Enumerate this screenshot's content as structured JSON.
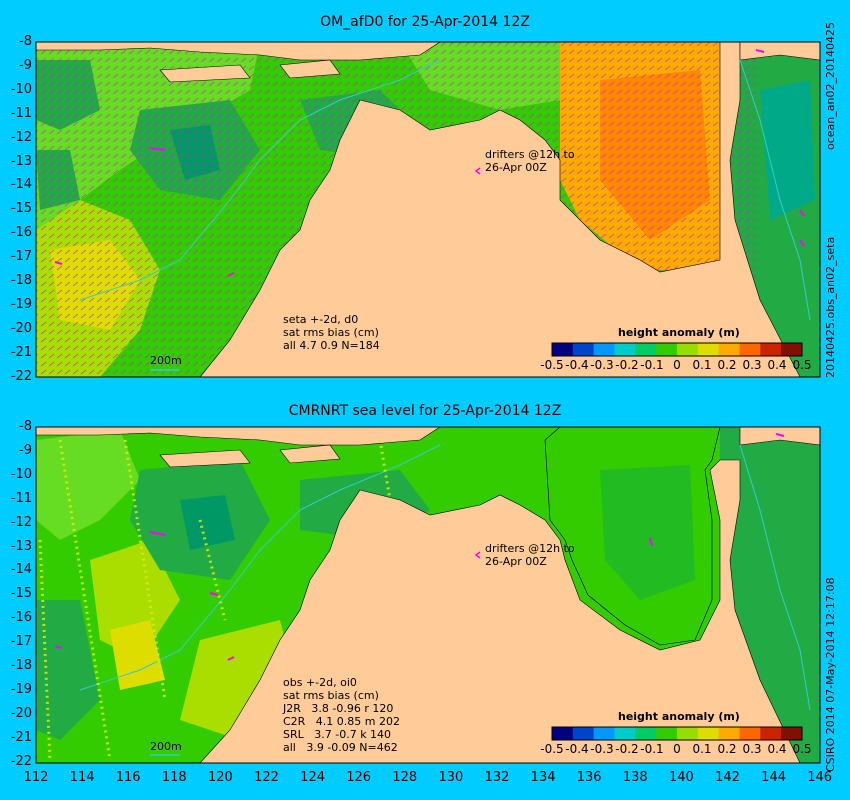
{
  "panels": [
    {
      "title": "OM_afD0 for 25-Apr-2014 12Z",
      "drifters_label": "drifters @12h to\n26-Apr 00Z",
      "stats": "seta +-2d, d0\nsat rms bias (cm)\nall 4.7 0.9 N=184",
      "scale_label": "200m",
      "colorbar_title": "height anomaly (m)"
    },
    {
      "title": "CMRNRT sea level  for 25-Apr-2014 12Z",
      "drifters_label": "drifters @12h to\n26-Apr 00Z",
      "stats": "obs +-2d, oi0\nsat rms bias (cm)\nJ2R   3.8 -0.96 r 120\nC2R   4.1 0.85 m 202\nSRL   3.7 -0.7 k 140\nall   3.9 -0.09 N=462",
      "scale_label": "200m",
      "colorbar_title": "height anomaly (m)"
    }
  ],
  "side_labels": {
    "top_right": "ocean_an02_20140425",
    "mid_right": "20140425.obs_an02_seta",
    "bottom_right": "CSIRO 2014  07-May-2014 12:17:08"
  },
  "axes": {
    "lat_ticks": [
      "-8",
      "-9",
      "-10",
      "-11",
      "-12",
      "-13",
      "-14",
      "-15",
      "-16",
      "-17",
      "-18",
      "-19",
      "-20",
      "-21",
      "-22"
    ],
    "lon_ticks": [
      "112",
      "114",
      "116",
      "118",
      "120",
      "122",
      "124",
      "126",
      "128",
      "130",
      "132",
      "134",
      "136",
      "138",
      "140",
      "142",
      "144",
      "146"
    ]
  },
  "colorbar": {
    "ticks": [
      "-0.5",
      "-0.4",
      "-0.3",
      "-0.2",
      "-0.1",
      "0",
      "0.1",
      "0.2",
      "0.3",
      "0.4",
      "0.5"
    ],
    "range": [
      -0.5,
      0.5
    ],
    "colors": [
      "#000080",
      "#0044cc",
      "#0099ff",
      "#00cccc",
      "#00cc66",
      "#33cc00",
      "#99dd00",
      "#dddd00",
      "#ffaa00",
      "#ff6600",
      "#cc2200",
      "#801000"
    ]
  },
  "colors": {
    "land": "#ffcc99",
    "background": "#00ccff",
    "drifter": "#ff00ff",
    "track": "#33cccc"
  }
}
